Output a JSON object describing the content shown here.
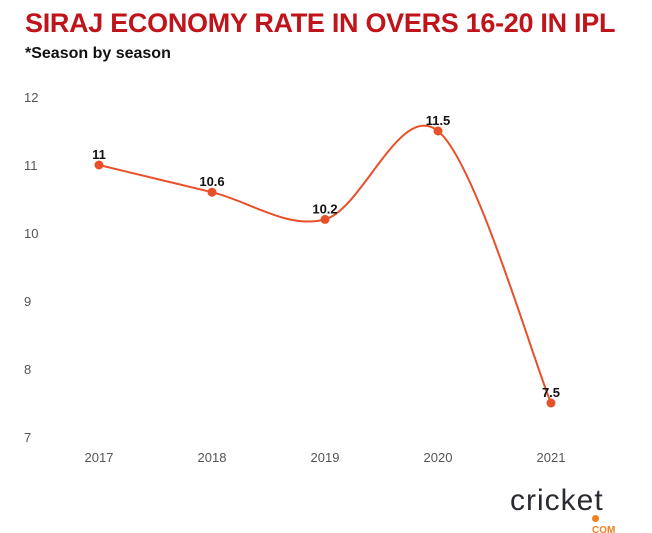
{
  "chart_data": {
    "type": "line",
    "title": "SIRAJ ECONOMY RATE IN OVERS 16-20 IN IPL",
    "subtitle": "*Season by season",
    "categories": [
      "2017",
      "2018",
      "2019",
      "2020",
      "2021"
    ],
    "values": [
      11,
      10.6,
      10.2,
      11.5,
      7.5
    ],
    "data_labels": [
      "11",
      "10.6",
      "10.2",
      "11.5",
      "7.5"
    ],
    "yticks": [
      "12",
      "11",
      "10",
      "9",
      "8",
      "7"
    ],
    "ylim": [
      7,
      12
    ],
    "grid": false,
    "smooth": true,
    "line_color": "#e8502a",
    "xlabel": "",
    "ylabel": ""
  },
  "branding": {
    "logo_text": "cricket",
    "logo_suffix": "COM"
  },
  "colors": {
    "title": "#c0141b",
    "line": "#e8502a"
  }
}
